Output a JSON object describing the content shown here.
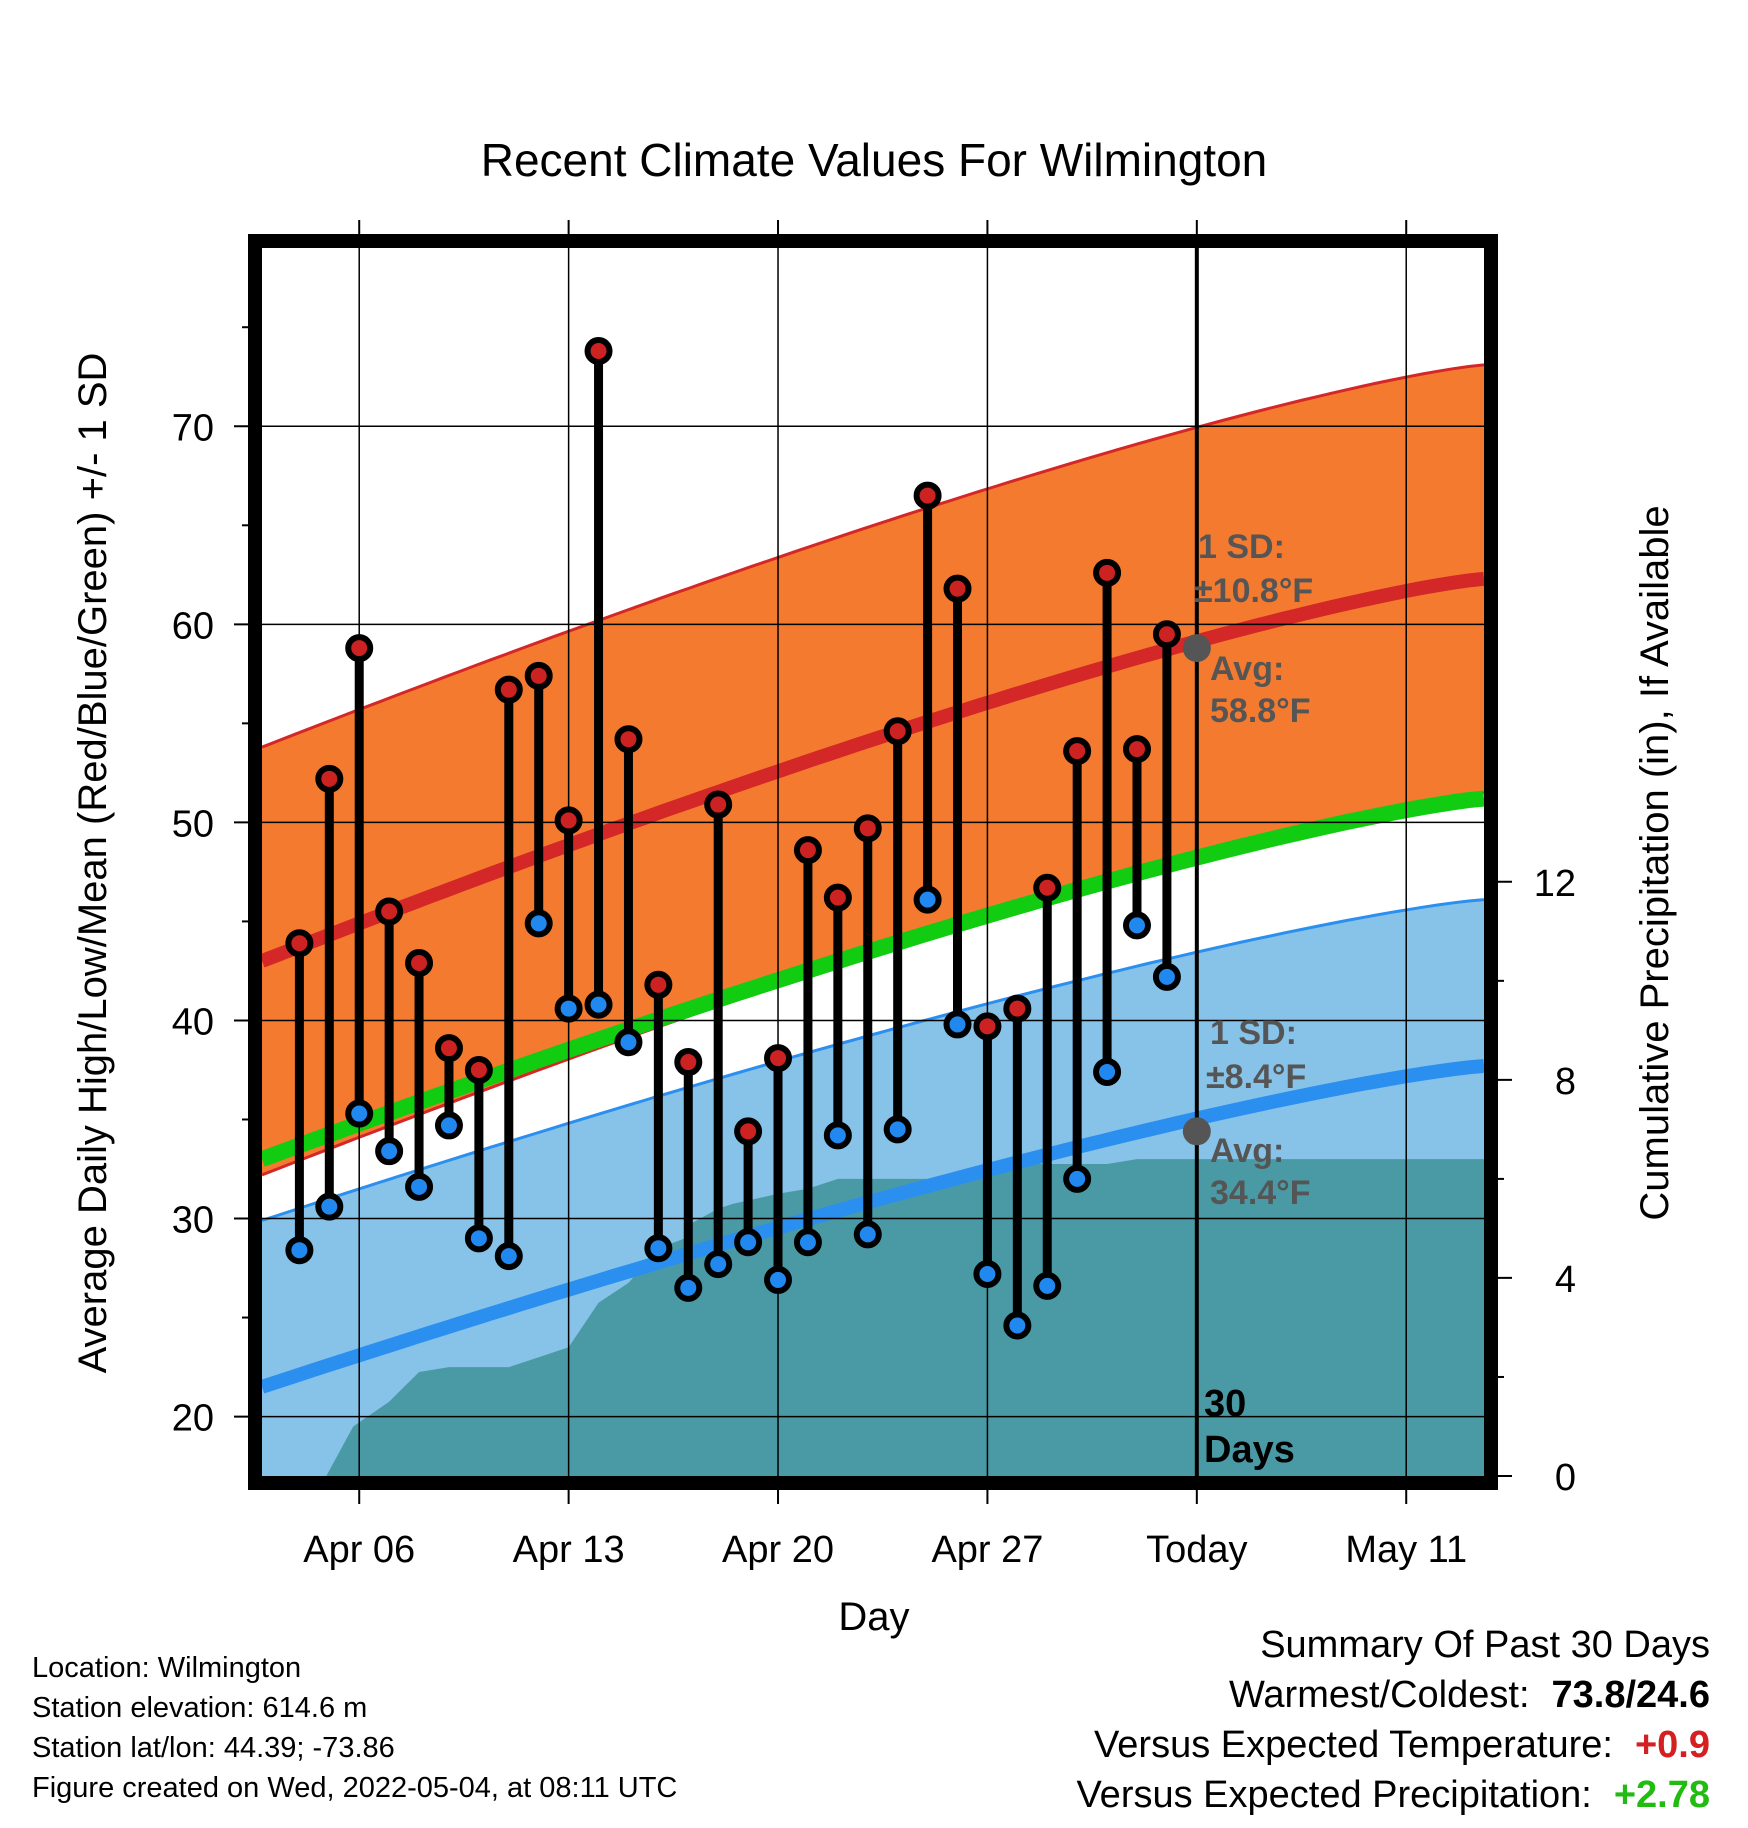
{
  "chart_data": {
    "type": "line",
    "title": "Recent Climate Values For Wilmington",
    "xlabel": "Day",
    "ylabel_left": "Average Daily High/Low/Mean (Red/Blue/Green) +/- 1 SD",
    "ylabel_right": "Cumulative Precipitation (in), If Available",
    "x_tick_labels": [
      {
        "day": 3,
        "label": "Apr 06"
      },
      {
        "day": 10,
        "label": "Apr 13"
      },
      {
        "day": 17,
        "label": "Apr 20"
      },
      {
        "day": 24,
        "label": "Apr 27"
      },
      {
        "day": 31,
        "label": "Today"
      },
      {
        "day": 38,
        "label": "May 11"
      }
    ],
    "xlim": [
      -0.25,
      40.6
    ],
    "ylim_left": [
      17,
      79
    ],
    "y_ticks_left": [
      20,
      30,
      40,
      50,
      60,
      70
    ],
    "y_minor_ticks_left": [
      25,
      35,
      45,
      55,
      65,
      75
    ],
    "ylim_right": [
      0,
      24.8
    ],
    "y_ticks_right": [
      0,
      4,
      8,
      12
    ],
    "y_minor_ticks_right": [
      2,
      6,
      10
    ],
    "normal_high": {
      "start": 43.0,
      "end": 62.3,
      "sd": 10.8
    },
    "normal_low": {
      "start": 21.5,
      "end": 37.7,
      "sd": 8.4
    },
    "normal_mean": {
      "start": 33.0,
      "end": 51.2
    },
    "daily_high": [
      43.9,
      52.2,
      58.8,
      45.5,
      42.9,
      38.6,
      37.5,
      56.7,
      57.4,
      50.1,
      73.8,
      54.2,
      41.8,
      37.9,
      50.9,
      34.4,
      38.1,
      48.6,
      46.2,
      49.7,
      54.6,
      66.5,
      61.8,
      39.7,
      40.6,
      46.7,
      53.6,
      62.6,
      53.7,
      59.5
    ],
    "daily_low": [
      28.4,
      30.6,
      35.3,
      33.4,
      31.6,
      34.7,
      29.0,
      28.1,
      44.9,
      40.6,
      40.8,
      38.9,
      28.5,
      26.5,
      27.7,
      28.8,
      26.9,
      28.8,
      34.2,
      29.2,
      34.5,
      46.1,
      39.8,
      27.2,
      24.6,
      26.6,
      32.0,
      37.4,
      44.8,
      42.2
    ],
    "precip_cumulative": [
      [
        -0.25,
        0
      ],
      [
        1.9,
        0
      ],
      [
        2.8,
        1.0
      ],
      [
        4.0,
        1.5
      ],
      [
        5.0,
        2.1
      ],
      [
        6.0,
        2.2
      ],
      [
        8.0,
        2.2
      ],
      [
        9.0,
        2.4
      ],
      [
        10.0,
        2.6
      ],
      [
        11.0,
        3.5
      ],
      [
        12.0,
        3.9
      ],
      [
        13.0,
        4.6
      ],
      [
        13.9,
        4.8
      ],
      [
        14.1,
        5.1
      ],
      [
        15.0,
        5.4
      ],
      [
        15.5,
        5.5
      ],
      [
        17.0,
        5.7
      ],
      [
        18.0,
        5.8
      ],
      [
        19.0,
        6.0
      ],
      [
        20.0,
        6.0
      ],
      [
        22.0,
        6.0
      ],
      [
        23.0,
        6.1
      ],
      [
        24.0,
        6.3
      ],
      [
        26.0,
        6.3
      ],
      [
        28.0,
        6.3
      ],
      [
        29.0,
        6.4
      ],
      [
        31.0,
        6.4
      ],
      [
        40.6,
        6.4
      ]
    ],
    "today_day": 31,
    "today_normal_high": 58.8,
    "today_normal_low": 34.4,
    "colors": {
      "high_band": "#f47a30",
      "high_line": "#d42727",
      "low_band": "#87c3e8",
      "low_line": "#2b8ff0",
      "mean_line": "#11cc11",
      "precip": "#4a9aa5",
      "dot_high": "#cc2222",
      "dot_low": "#2188f0",
      "today_dot": "#555555"
    }
  },
  "annotations": {
    "high_sd_line1": "1 SD:",
    "high_sd_line2": "±10.8°F",
    "high_avg_line1": "Avg:",
    "high_avg_line2": "58.8°F",
    "low_sd_line1": "1 SD:",
    "low_sd_line2": "±8.4°F",
    "low_avg_line1": "Avg:",
    "low_avg_line2": "34.4°F",
    "days_line1": "30",
    "days_line2": "Days"
  },
  "footer": {
    "location": "Location: Wilmington",
    "elevation": "Station elevation: 614.6 m",
    "latlon": "Station lat/lon: 44.39; -73.86",
    "created": "Figure created on Wed, 2022-05-04, at 08:11 UTC"
  },
  "summary": {
    "heading": "Summary Of Past 30 Days",
    "warmest_label": "Warmest/Coldest:",
    "warmest_value": "73.8/24.6",
    "temp_label": "Versus Expected Temperature:",
    "temp_value": "+0.9",
    "precip_label": "Versus Expected Precipitation:",
    "precip_value": "+2.78"
  }
}
